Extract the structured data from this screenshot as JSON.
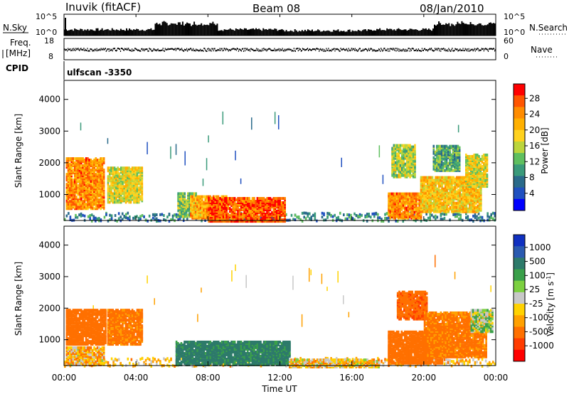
{
  "header": {
    "station": "Inuvik (fitACF)",
    "beam": "Beam 08",
    "date": "08/Jan/2010"
  },
  "strips": {
    "nsky_label": "N.Sky",
    "nsky_ticks": [
      "10^5",
      "10^0"
    ],
    "nsearch_label": "N.Search",
    "nsearch_ticks": [
      "10^5",
      "10^0"
    ],
    "freq_label_1": "Freq.",
    "freq_label_2": "[MHz]",
    "freq_ticks": [
      "18",
      "8"
    ],
    "nave_label": "Nave",
    "nave_ticks": [
      "60",
      "0"
    ],
    "cpid_label": "CPID",
    "cpid_value": "ulfscan -3350"
  },
  "chart_data": [
    {
      "type": "heatmap",
      "name": "power-panel",
      "ylabel": "Slant Range [km]",
      "ylim": [
        180,
        4600
      ],
      "yticks": [
        1000,
        2000,
        3000,
        4000
      ],
      "xlabel": "",
      "xlim_hours": [
        0,
        24
      ],
      "xticks": [
        "00:00",
        "04:00",
        "08:00",
        "12:00",
        "16:00",
        "20:00",
        "00:00"
      ],
      "colorbar": {
        "title": "Power [dB]",
        "ticks": [
          "28",
          "24",
          "20",
          "16",
          "12",
          "8",
          "4"
        ],
        "colors": [
          "#ff0000",
          "#ff5500",
          "#ff8c00",
          "#ffb000",
          "#ffd21e",
          "#bcd53c",
          "#5fbf5f",
          "#3a9a7a",
          "#2a6a8a",
          "#2050c0",
          "#0000ff"
        ]
      },
      "blobs": [
        {
          "t0": 0.1,
          "t1": 2.2,
          "r0": 600,
          "r1": 2200,
          "level": 24
        },
        {
          "t0": 2.4,
          "t1": 4.3,
          "r0": 800,
          "r1": 1900,
          "level": 18
        },
        {
          "t0": 6.3,
          "t1": 7.3,
          "r0": 350,
          "r1": 1100,
          "level": 14
        },
        {
          "t0": 7.0,
          "t1": 9.0,
          "r0": 300,
          "r1": 1000,
          "level": 22
        },
        {
          "t0": 8.0,
          "t1": 12.3,
          "r0": 200,
          "r1": 950,
          "level": 27
        },
        {
          "t0": 18.0,
          "t1": 19.8,
          "r0": 300,
          "r1": 1100,
          "level": 24
        },
        {
          "t0": 18.2,
          "t1": 19.5,
          "r0": 1600,
          "r1": 2600,
          "level": 16
        },
        {
          "t0": 19.8,
          "t1": 23.2,
          "r0": 500,
          "r1": 1600,
          "level": 20
        },
        {
          "t0": 20.5,
          "t1": 22.0,
          "r0": 1800,
          "r1": 2600,
          "level": 12
        },
        {
          "t0": 22.3,
          "t1": 23.5,
          "r0": 1300,
          "r1": 2300,
          "level": 18
        }
      ]
    },
    {
      "type": "heatmap",
      "name": "velocity-panel",
      "ylabel": "Slant Range [km]",
      "ylim": [
        180,
        4600
      ],
      "yticks": [
        1000,
        2000,
        3000,
        4000
      ],
      "xlabel": "Time UT",
      "xlim_hours": [
        0,
        24
      ],
      "xticks": [
        "00:00",
        "04:00",
        "08:00",
        "12:00",
        "16:00",
        "20:00",
        "00:00"
      ],
      "colorbar": {
        "title": "Velocity [m s-1]",
        "ticks": [
          "1000",
          "500",
          "100",
          "25",
          "-25",
          "-100",
          "-500",
          "-1000"
        ],
        "colors": [
          "#1030c0",
          "#2a5ab0",
          "#2d7a6a",
          "#3aa04a",
          "#7cd040",
          "#c8c8c8",
          "#ffd200",
          "#ffa000",
          "#ff7000",
          "#ff3c00",
          "#ff0000"
        ]
      },
      "blobs": [
        {
          "t0": 0.1,
          "t1": 2.3,
          "r0": 900,
          "r1": 2000,
          "vel": -200
        },
        {
          "t0": 2.4,
          "t1": 4.3,
          "r0": 900,
          "r1": 2000,
          "vel": -150
        },
        {
          "t0": 0.1,
          "t1": 2.2,
          "r0": 250,
          "r1": 800,
          "vel": -60
        },
        {
          "t0": 6.2,
          "t1": 12.5,
          "r0": 250,
          "r1": 1000,
          "vel": 150
        },
        {
          "t0": 12.5,
          "t1": 17.5,
          "r0": 180,
          "r1": 450,
          "vel": -40
        },
        {
          "t0": 18.0,
          "t1": 21.0,
          "r0": 300,
          "r1": 1300,
          "vel": -200
        },
        {
          "t0": 18.5,
          "t1": 20.2,
          "r0": 1700,
          "r1": 2600,
          "vel": -250
        },
        {
          "t0": 20.0,
          "t1": 23.5,
          "r0": 500,
          "r1": 1900,
          "vel": -150
        },
        {
          "t0": 22.6,
          "t1": 23.8,
          "r0": 1300,
          "r1": 2000,
          "vel": 10
        }
      ]
    }
  ]
}
